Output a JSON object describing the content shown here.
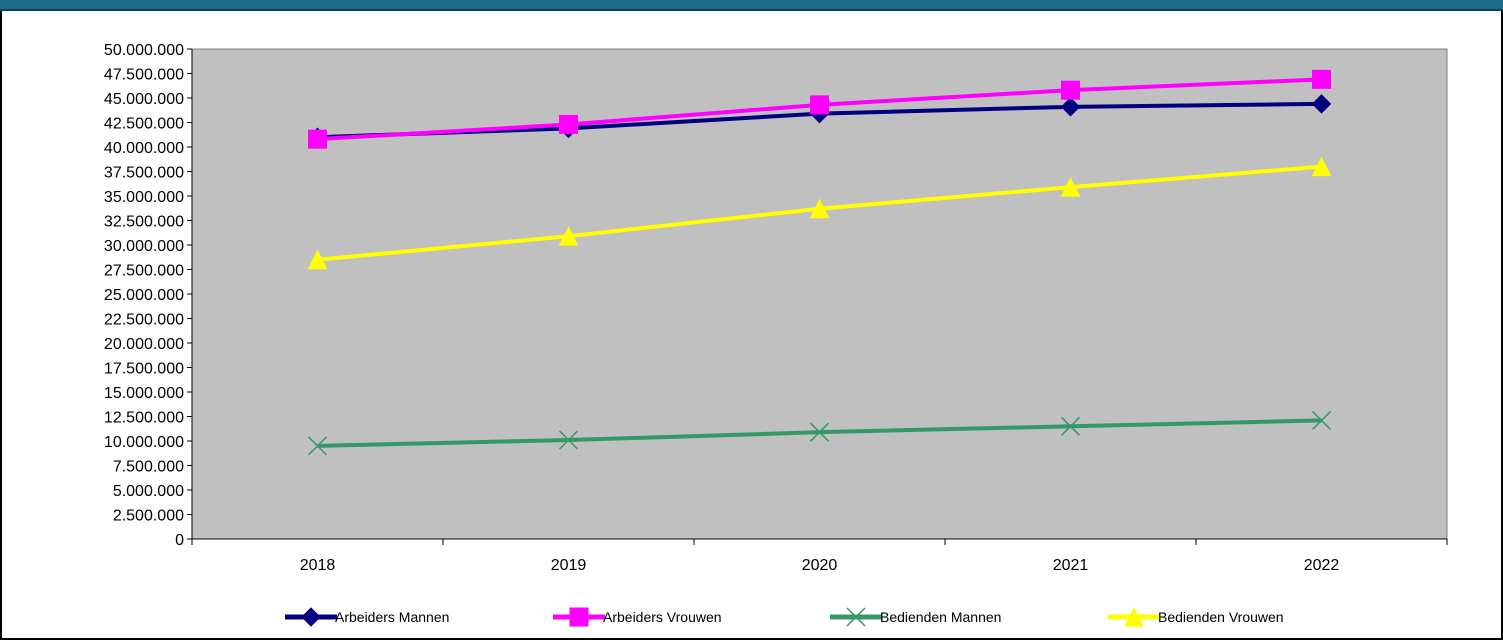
{
  "colors": {
    "header": "#1a6d8a",
    "plot_background": "#c0c0c0"
  },
  "chart_data": {
    "type": "line",
    "title": "",
    "xlabel": "",
    "ylabel": "",
    "categories": [
      "2018",
      "2019",
      "2020",
      "2021",
      "2022"
    ],
    "ylim": [
      0,
      50000000
    ],
    "y_tick_step": 2500000,
    "y_tick_labels": [
      "0",
      "2.500.000",
      "5.000.000",
      "7.500.000",
      "10.000.000",
      "12.500.000",
      "15.000.000",
      "17.500.000",
      "20.000.000",
      "22.500.000",
      "25.000.000",
      "27.500.000",
      "30.000.000",
      "32.500.000",
      "35.000.000",
      "37.500.000",
      "40.000.000",
      "42.500.000",
      "45.000.000",
      "47.500.000",
      "50.000.000"
    ],
    "grid": false,
    "legend_position": "bottom",
    "series": [
      {
        "name": "Arbeiders Mannen",
        "color": "#000080",
        "marker": "diamond",
        "values": [
          41000000,
          41900000,
          43400000,
          44100000,
          44400000
        ]
      },
      {
        "name": "Arbeiders Vrouwen",
        "color": "#ff00ff",
        "marker": "square",
        "values": [
          40800000,
          42300000,
          44300000,
          45800000,
          46900000
        ]
      },
      {
        "name": "Bedienden Mannen",
        "color": "#339966",
        "marker": "x",
        "values": [
          9500000,
          10100000,
          10900000,
          11500000,
          12100000
        ]
      },
      {
        "name": "Bedienden Vrouwen",
        "color": "#ffff00",
        "marker": "triangle",
        "values": [
          28500000,
          30900000,
          33700000,
          35900000,
          38000000
        ]
      }
    ]
  }
}
